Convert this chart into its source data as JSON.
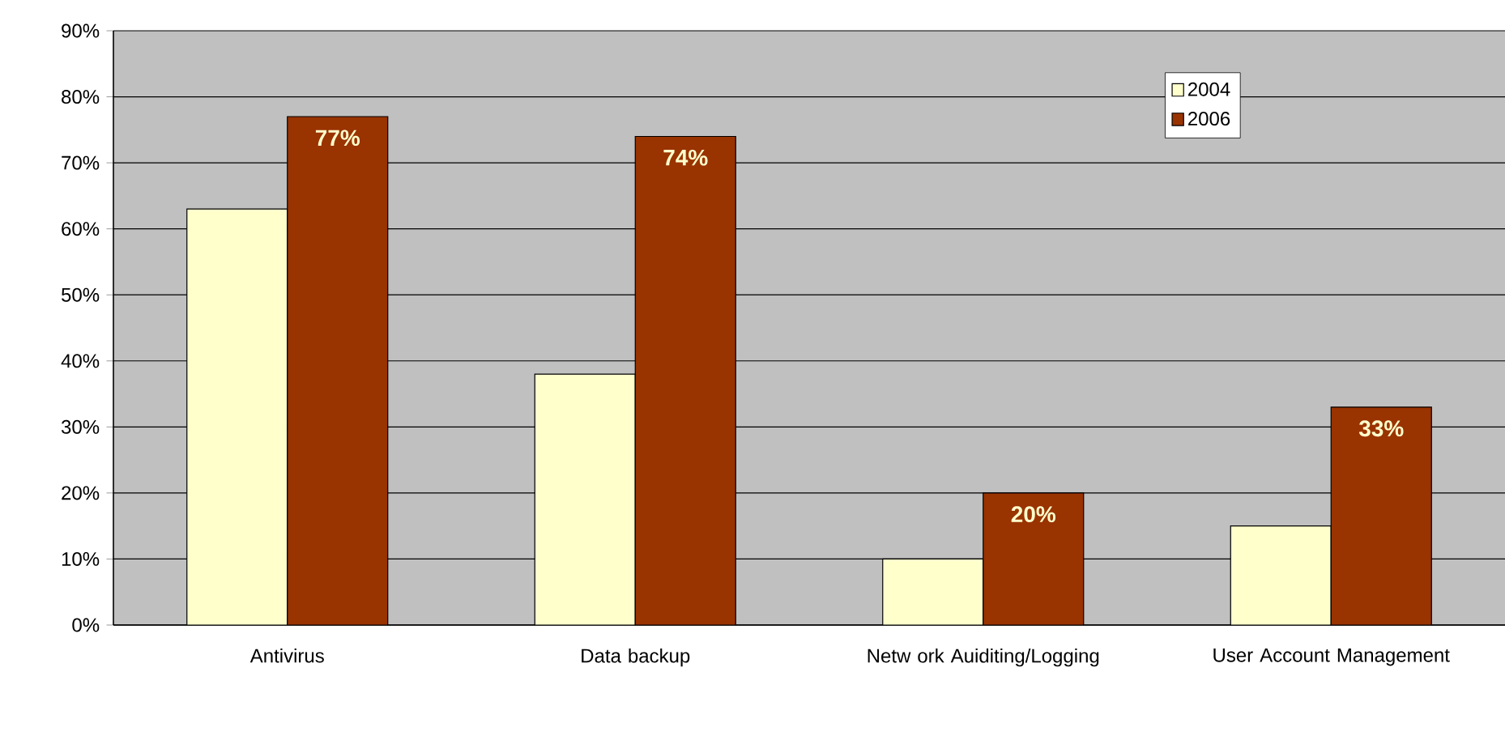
{
  "chart_data": {
    "type": "bar",
    "categories": [
      "Antivirus",
      "Data backup",
      "Netw ork Auiditing/Logging",
      "User Account Management"
    ],
    "series": [
      {
        "name": "2004",
        "color": "#ffffcc",
        "values": [
          63,
          38,
          10,
          15
        ]
      },
      {
        "name": "2006",
        "color": "#993300",
        "values": [
          77,
          74,
          20,
          33
        ],
        "value_labels": [
          "77%",
          "74%",
          "20%",
          "33%"
        ]
      }
    ],
    "ylim": [
      0,
      90
    ],
    "yticks": [
      {
        "value": 0,
        "label": "0%"
      },
      {
        "value": 10,
        "label": "10%"
      },
      {
        "value": 20,
        "label": "20%"
      },
      {
        "value": 30,
        "label": "30%"
      },
      {
        "value": 40,
        "label": "40%"
      },
      {
        "value": 50,
        "label": "50%"
      },
      {
        "value": 60,
        "label": "60%"
      },
      {
        "value": 70,
        "label": "70%"
      },
      {
        "value": 80,
        "label": "80%"
      },
      {
        "value": 90,
        "label": "90%"
      }
    ],
    "grid": "y",
    "legend": "top right"
  }
}
